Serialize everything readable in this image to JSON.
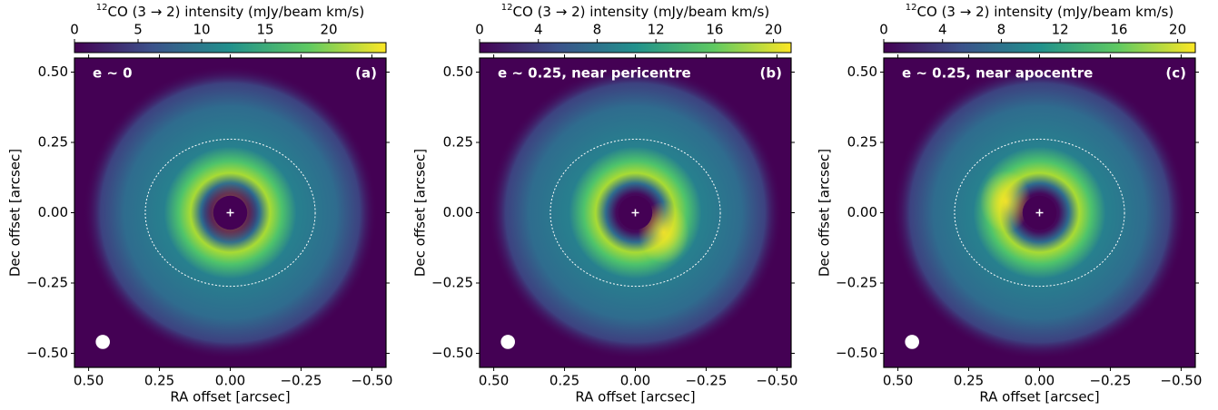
{
  "chart_data": [
    {
      "type": "image",
      "colormap": "viridis",
      "colorbar_label_sup": "12",
      "colorbar_label": "CO (3 → 2) intensity (mJy/beam km/s)",
      "clim": [
        0,
        24.5
      ],
      "cticks": [
        0,
        5,
        10,
        15,
        20
      ],
      "annotation": "e ∼ 0",
      "panel_label": "(a)",
      "xlabel": "RA offset [arcsec]",
      "ylabel": "Dec offset [arcsec]",
      "xlim": [
        0.55,
        -0.55
      ],
      "ylim": [
        -0.55,
        0.55
      ],
      "xticks": [
        {
          "value": 0.5,
          "label": "0.50"
        },
        {
          "value": 0.25,
          "label": "0.25"
        },
        {
          "value": 0,
          "label": "0.00"
        },
        {
          "value": -0.25,
          "label": "−0.25"
        },
        {
          "value": -0.5,
          "label": "−0.50"
        }
      ],
      "yticks": [
        {
          "value": -0.5,
          "label": "−0.50"
        },
        {
          "value": -0.25,
          "label": "−0.25"
        },
        {
          "value": 0,
          "label": "0.00"
        },
        {
          "value": 0.25,
          "label": "0.25"
        },
        {
          "value": 0.5,
          "label": "0.50"
        }
      ]
    },
    {
      "type": "image",
      "colormap": "viridis",
      "colorbar_label_sup": "12",
      "colorbar_label": "CO (3 → 2) intensity (mJy/beam km/s)",
      "clim": [
        0,
        21.2
      ],
      "cticks": [
        0,
        4,
        8,
        12,
        16,
        20
      ],
      "annotation": "e ∼ 0.25, near pericentre",
      "panel_label": "(b)",
      "xlabel": "RA offset [arcsec]",
      "ylabel": "Dec offset [arcsec]",
      "xlim": [
        0.55,
        -0.55
      ],
      "ylim": [
        -0.55,
        0.55
      ],
      "xticks": [
        {
          "value": 0.5,
          "label": "0.50"
        },
        {
          "value": 0.25,
          "label": "0.25"
        },
        {
          "value": 0,
          "label": "0.00"
        },
        {
          "value": -0.25,
          "label": "−0.25"
        },
        {
          "value": -0.5,
          "label": "−0.50"
        }
      ],
      "yticks": [
        {
          "value": -0.5,
          "label": "−0.50"
        },
        {
          "value": -0.25,
          "label": "−0.25"
        },
        {
          "value": 0,
          "label": "0.00"
        },
        {
          "value": 0.25,
          "label": "0.25"
        },
        {
          "value": 0.5,
          "label": "0.50"
        }
      ]
    },
    {
      "type": "image",
      "colormap": "viridis",
      "colorbar_label_sup": "12",
      "colorbar_label": "CO (3 → 2) intensity (mJy/beam km/s)",
      "clim": [
        0,
        21.2
      ],
      "cticks": [
        0,
        4,
        8,
        12,
        16,
        20
      ],
      "annotation": "e ∼ 0.25, near apocentre",
      "panel_label": "(c)",
      "xlabel": "RA offset [arcsec]",
      "ylabel": "Dec offset [arcsec]",
      "xlim": [
        0.55,
        -0.55
      ],
      "ylim": [
        -0.55,
        0.55
      ],
      "xticks": [
        {
          "value": 0.5,
          "label": "0.50"
        },
        {
          "value": 0.25,
          "label": "0.25"
        },
        {
          "value": 0,
          "label": "0.00"
        },
        {
          "value": -0.25,
          "label": "−0.25"
        },
        {
          "value": -0.5,
          "label": "−0.50"
        }
      ],
      "yticks": [
        {
          "value": -0.5,
          "label": "−0.50"
        },
        {
          "value": -0.25,
          "label": "−0.25"
        },
        {
          "value": 0,
          "label": "0.00"
        },
        {
          "value": 0.25,
          "label": "0.25"
        },
        {
          "value": 0.5,
          "label": "0.50"
        }
      ]
    }
  ]
}
